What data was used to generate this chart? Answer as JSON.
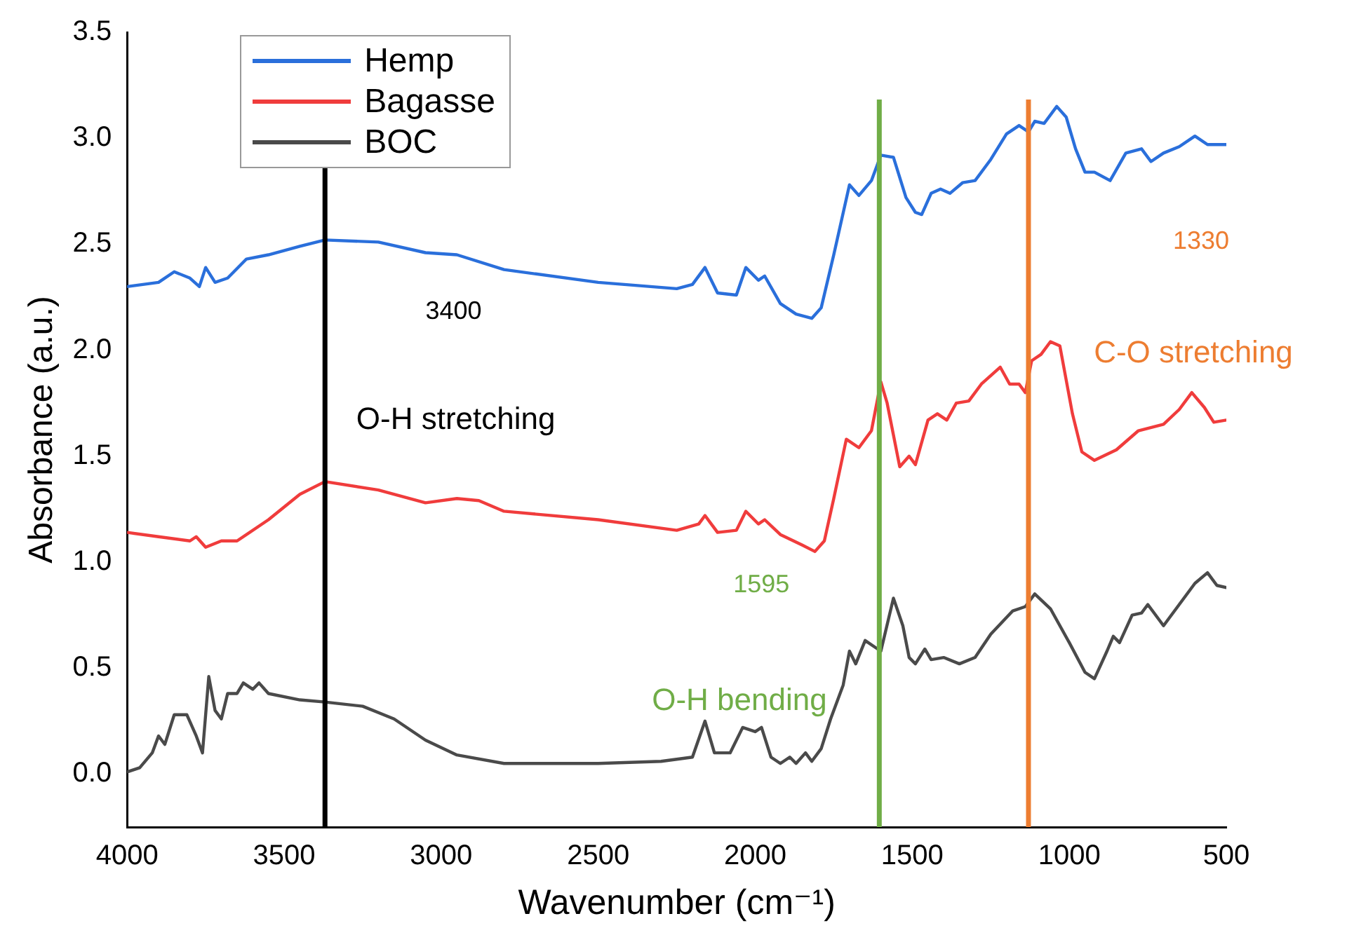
{
  "chart_data": {
    "type": "line",
    "xlabel": "Wavenumber (cm⁻¹)",
    "ylabel": "Absorbance (a.u.)",
    "xlim": [
      4000,
      500
    ],
    "xticks": [
      4000,
      3500,
      3000,
      2500,
      2000,
      1500,
      1000,
      500
    ],
    "ylim": [
      -0.25,
      3.5
    ],
    "yticks": [
      {
        "value": 0,
        "label": "0.0"
      },
      0.5,
      {
        "value": 1,
        "label": "1.0"
      },
      1.5,
      {
        "value": 2,
        "label": "2.0"
      },
      2.5,
      {
        "value": 3,
        "label": "3.0"
      },
      3.5
    ],
    "grid": false,
    "legend": "top left",
    "marker": "none",
    "line_style": "solid",
    "series": [
      {
        "name": "Hemp",
        "color": "#2a6fdb",
        "x": [
          4000,
          3900,
          3850,
          3800,
          3770,
          3750,
          3720,
          3680,
          3620,
          3550,
          3450,
          3370,
          3200,
          3050,
          2950,
          2800,
          2500,
          2250,
          2200,
          2160,
          2120,
          2060,
          2030,
          1990,
          1970,
          1920,
          1870,
          1820,
          1790,
          1750,
          1700,
          1670,
          1630,
          1600,
          1560,
          1520,
          1490,
          1470,
          1440,
          1410,
          1380,
          1340,
          1300,
          1250,
          1200,
          1160,
          1130,
          1110,
          1080,
          1040,
          1010,
          980,
          950,
          920,
          870,
          820,
          770,
          740,
          700,
          650,
          600,
          560,
          500
        ],
        "values": [
          2.3,
          2.32,
          2.37,
          2.34,
          2.3,
          2.39,
          2.32,
          2.34,
          2.43,
          2.45,
          2.49,
          2.52,
          2.51,
          2.46,
          2.45,
          2.38,
          2.32,
          2.29,
          2.31,
          2.39,
          2.27,
          2.26,
          2.39,
          2.33,
          2.35,
          2.22,
          2.17,
          2.15,
          2.2,
          2.45,
          2.78,
          2.73,
          2.8,
          2.92,
          2.91,
          2.72,
          2.65,
          2.64,
          2.74,
          2.76,
          2.74,
          2.79,
          2.8,
          2.9,
          3.02,
          3.06,
          3.03,
          3.08,
          3.07,
          3.15,
          3.1,
          2.95,
          2.84,
          2.84,
          2.8,
          2.93,
          2.95,
          2.89,
          2.93,
          2.96,
          3.01,
          2.97,
          2.97
        ]
      },
      {
        "name": "Bagasse",
        "color": "#f03c3c",
        "x": [
          4000,
          3900,
          3800,
          3780,
          3750,
          3700,
          3650,
          3550,
          3450,
          3370,
          3200,
          3050,
          2950,
          2880,
          2800,
          2500,
          2250,
          2180,
          2160,
          2120,
          2060,
          2030,
          1990,
          1970,
          1920,
          1850,
          1810,
          1780,
          1750,
          1710,
          1670,
          1630,
          1600,
          1580,
          1540,
          1510,
          1490,
          1450,
          1420,
          1390,
          1360,
          1320,
          1280,
          1220,
          1190,
          1160,
          1140,
          1120,
          1090,
          1060,
          1030,
          990,
          960,
          920,
          850,
          780,
          700,
          650,
          610,
          570,
          540,
          500
        ],
        "values": [
          1.14,
          1.12,
          1.1,
          1.12,
          1.07,
          1.1,
          1.1,
          1.2,
          1.32,
          1.38,
          1.34,
          1.28,
          1.3,
          1.29,
          1.24,
          1.2,
          1.15,
          1.18,
          1.22,
          1.14,
          1.15,
          1.24,
          1.18,
          1.2,
          1.13,
          1.08,
          1.05,
          1.1,
          1.3,
          1.58,
          1.54,
          1.62,
          1.85,
          1.75,
          1.45,
          1.5,
          1.46,
          1.67,
          1.7,
          1.67,
          1.75,
          1.76,
          1.84,
          1.92,
          1.84,
          1.84,
          1.8,
          1.95,
          1.98,
          2.04,
          2.02,
          1.7,
          1.52,
          1.48,
          1.53,
          1.62,
          1.65,
          1.72,
          1.8,
          1.73,
          1.66,
          1.67
        ]
      },
      {
        "name": "BOC",
        "color": "#4a4a4a",
        "x": [
          4000,
          3960,
          3920,
          3900,
          3880,
          3850,
          3810,
          3780,
          3760,
          3740,
          3720,
          3700,
          3680,
          3650,
          3630,
          3600,
          3580,
          3550,
          3450,
          3370,
          3250,
          3150,
          3050,
          2950,
          2800,
          2500,
          2300,
          2200,
          2160,
          2130,
          2080,
          2040,
          2000,
          1980,
          1950,
          1920,
          1890,
          1870,
          1840,
          1820,
          1790,
          1760,
          1720,
          1700,
          1680,
          1650,
          1620,
          1600,
          1560,
          1530,
          1510,
          1490,
          1460,
          1440,
          1400,
          1350,
          1300,
          1250,
          1180,
          1140,
          1110,
          1060,
          1000,
          950,
          920,
          880,
          860,
          840,
          800,
          770,
          750,
          700,
          650,
          600,
          560,
          530,
          500
        ],
        "values": [
          0.01,
          0.03,
          0.1,
          0.18,
          0.14,
          0.28,
          0.28,
          0.18,
          0.1,
          0.46,
          0.3,
          0.26,
          0.38,
          0.38,
          0.43,
          0.4,
          0.43,
          0.38,
          0.35,
          0.34,
          0.32,
          0.26,
          0.16,
          0.09,
          0.05,
          0.05,
          0.06,
          0.08,
          0.25,
          0.1,
          0.1,
          0.22,
          0.2,
          0.22,
          0.08,
          0.05,
          0.08,
          0.05,
          0.1,
          0.06,
          0.12,
          0.26,
          0.42,
          0.58,
          0.52,
          0.63,
          0.6,
          0.58,
          0.83,
          0.7,
          0.55,
          0.52,
          0.59,
          0.54,
          0.55,
          0.52,
          0.55,
          0.66,
          0.77,
          0.79,
          0.85,
          0.78,
          0.62,
          0.48,
          0.45,
          0.58,
          0.65,
          0.62,
          0.75,
          0.76,
          0.8,
          0.7,
          0.8,
          0.9,
          0.95,
          0.89,
          0.88
        ]
      }
    ],
    "ref_lines": [
      {
        "axis": "x",
        "value": 3370,
        "color": "#000000"
      },
      {
        "axis": "x",
        "value": 1605,
        "color": "#70ad47"
      },
      {
        "axis": "x",
        "value": 1130,
        "color": "#ed7d31"
      }
    ],
    "annotations": [
      "3400",
      "O-H stretching",
      "1595",
      "O-H bending",
      "1330",
      "C-O stretching"
    ]
  }
}
